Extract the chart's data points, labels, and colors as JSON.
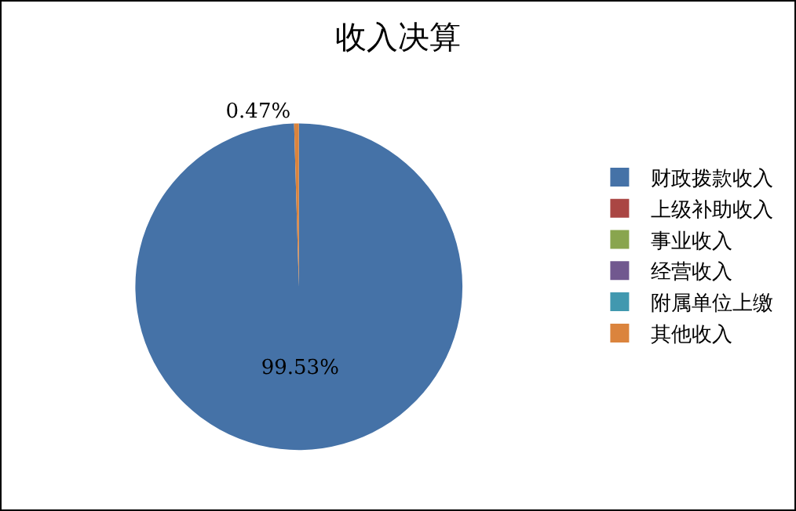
{
  "chart_data": {
    "type": "pie",
    "title": "收入决算",
    "categories": [
      "财政拨款收入",
      "上级补助收入",
      "事业收入",
      "经营收入",
      "附属单位上缴",
      "其他收入"
    ],
    "values": [
      99.53,
      0,
      0,
      0,
      0,
      0.47
    ],
    "colors": [
      "#4572a7",
      "#aa4643",
      "#89a54e",
      "#71588f",
      "#4198af",
      "#db843d"
    ],
    "value_labels": [
      "99.53%",
      null,
      null,
      null,
      null,
      "0.47%"
    ],
    "legend": "right"
  }
}
